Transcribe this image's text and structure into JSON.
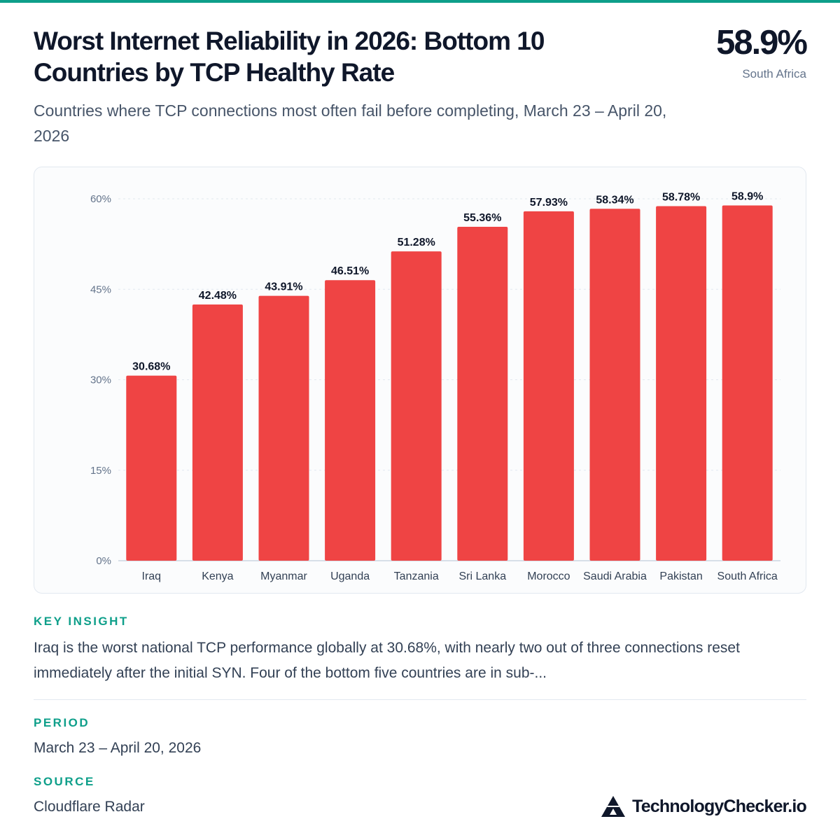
{
  "header": {
    "title": "Worst Internet Reliability in 2026: Bottom 10 Countries by TCP Healthy Rate",
    "subtitle": "Countries where TCP connections most often fail before completing, March 23 – April 20, 2026",
    "headline_value": "58.9%",
    "headline_label": "South Africa"
  },
  "chart_data": {
    "type": "bar",
    "categories": [
      "Iraq",
      "Kenya",
      "Myanmar",
      "Uganda",
      "Tanzania",
      "Sri Lanka",
      "Morocco",
      "Saudi Arabia",
      "Pakistan",
      "South Africa"
    ],
    "values": [
      30.68,
      42.48,
      43.91,
      46.51,
      51.28,
      55.36,
      57.93,
      58.34,
      58.78,
      58.9
    ],
    "value_labels": [
      "30.68%",
      "42.48%",
      "43.91%",
      "46.51%",
      "51.28%",
      "55.36%",
      "57.93%",
      "58.34%",
      "58.78%",
      "58.9%"
    ],
    "y_ticks": [
      0,
      15,
      30,
      45,
      60
    ],
    "y_tick_labels": [
      "0%",
      "15%",
      "30%",
      "45%",
      "60%"
    ],
    "ylim": [
      0,
      60
    ],
    "grid": true,
    "bar_color": "#ef4444"
  },
  "insight": {
    "label": "KEY INSIGHT",
    "text": "Iraq is the worst national TCP performance globally at 30.68%, with nearly two out of three connections reset immediately after the initial SYN. Four of the bottom five countries are in sub-..."
  },
  "period": {
    "label": "PERIOD",
    "value": "March 23 – April 20, 2026"
  },
  "source": {
    "label": "SOURCE",
    "value": "Cloudflare Radar"
  },
  "brand": {
    "name": "TechnologyChecker.io",
    "icon": "triangle-logo-icon"
  },
  "colors": {
    "accent": "#0e9f8a",
    "bar": "#ef4444",
    "text": "#0f172a",
    "muted": "#64748b"
  }
}
